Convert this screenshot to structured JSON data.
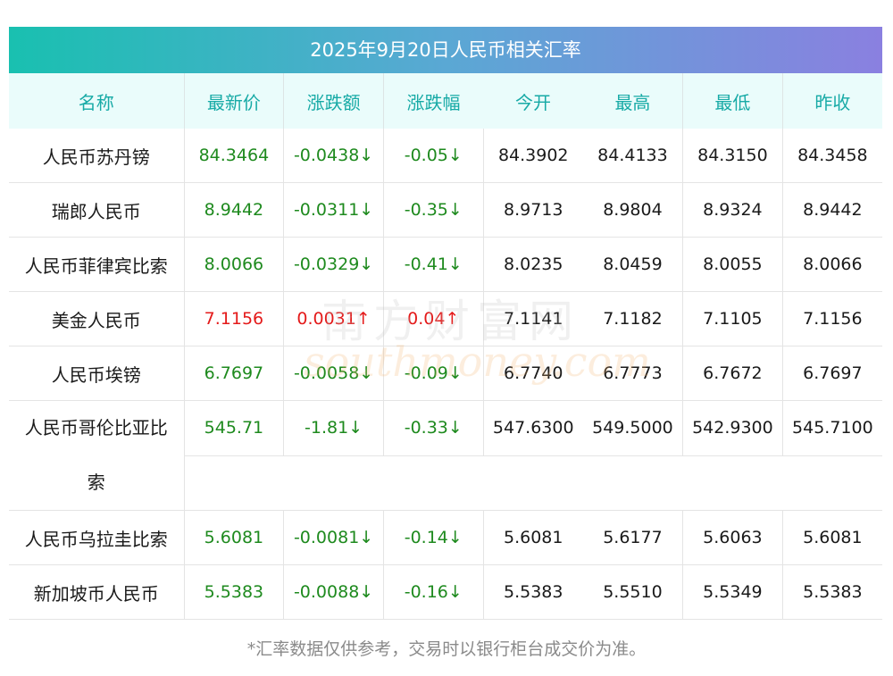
{
  "title": "2025年9月20日人民币相关汇率",
  "headers": [
    "名称",
    "最新价",
    "涨跌额",
    "涨跌幅",
    "今开",
    "最高",
    "最低",
    "昨收"
  ],
  "rows": [
    {
      "name": "人民币苏丹镑",
      "latest": "84.3464",
      "change": "-0.0438↓",
      "change_pct": "-0.05↓",
      "open": "84.3902",
      "high": "84.4133",
      "low": "84.3150",
      "prev_close": "84.3458",
      "direction": "down"
    },
    {
      "name": "瑞郎人民币",
      "latest": "8.9442",
      "change": "-0.0311↓",
      "change_pct": "-0.35↓",
      "open": "8.9713",
      "high": "8.9804",
      "low": "8.9324",
      "prev_close": "8.9442",
      "direction": "down"
    },
    {
      "name": "人民币菲律宾比索",
      "latest": "8.0066",
      "change": "-0.0329↓",
      "change_pct": "-0.41↓",
      "open": "8.0235",
      "high": "8.0459",
      "low": "8.0055",
      "prev_close": "8.0066",
      "direction": "down"
    },
    {
      "name": "美金人民币",
      "latest": "7.1156",
      "change": "0.0031↑",
      "change_pct": "0.04↑",
      "open": "7.1141",
      "high": "7.1182",
      "low": "7.1105",
      "prev_close": "7.1156",
      "direction": "up"
    },
    {
      "name": "人民币埃镑",
      "latest": "6.7697",
      "change": "-0.0058↓",
      "change_pct": "-0.09↓",
      "open": "6.7740",
      "high": "6.7773",
      "low": "6.7672",
      "prev_close": "6.7697",
      "direction": "down"
    },
    {
      "name_line1": "人民币哥伦比亚比",
      "name_line2": "索",
      "latest": "545.71",
      "change": "-1.81↓",
      "change_pct": "-0.33↓",
      "open": "547.6300",
      "high": "549.5000",
      "low": "542.9300",
      "prev_close": "545.7100",
      "direction": "down"
    },
    {
      "name": "人民币乌拉圭比索",
      "latest": "5.6081",
      "change": "-0.0081↓",
      "change_pct": "-0.14↓",
      "open": "5.6081",
      "high": "5.6177",
      "low": "5.6063",
      "prev_close": "5.6081",
      "direction": "down"
    },
    {
      "name": "新加坡币人民币",
      "latest": "5.5383",
      "change": "-0.0088↓",
      "change_pct": "-0.16↓",
      "open": "5.5383",
      "high": "5.5510",
      "low": "5.5349",
      "prev_close": "5.5383",
      "direction": "down"
    }
  ],
  "footnote": "*汇率数据仅供参考，交易时以银行柜台成交价为准。",
  "watermark": {
    "cn": "南方财富网",
    "en": "southmoney.com"
  },
  "colors": {
    "down": "#1e8a1e",
    "up": "#e41a1a",
    "header_text": "#17aaa6",
    "header_bg": "#eafcfb",
    "title_gradient_start": "#19c0b0",
    "title_gradient_end": "#8a80e0"
  }
}
